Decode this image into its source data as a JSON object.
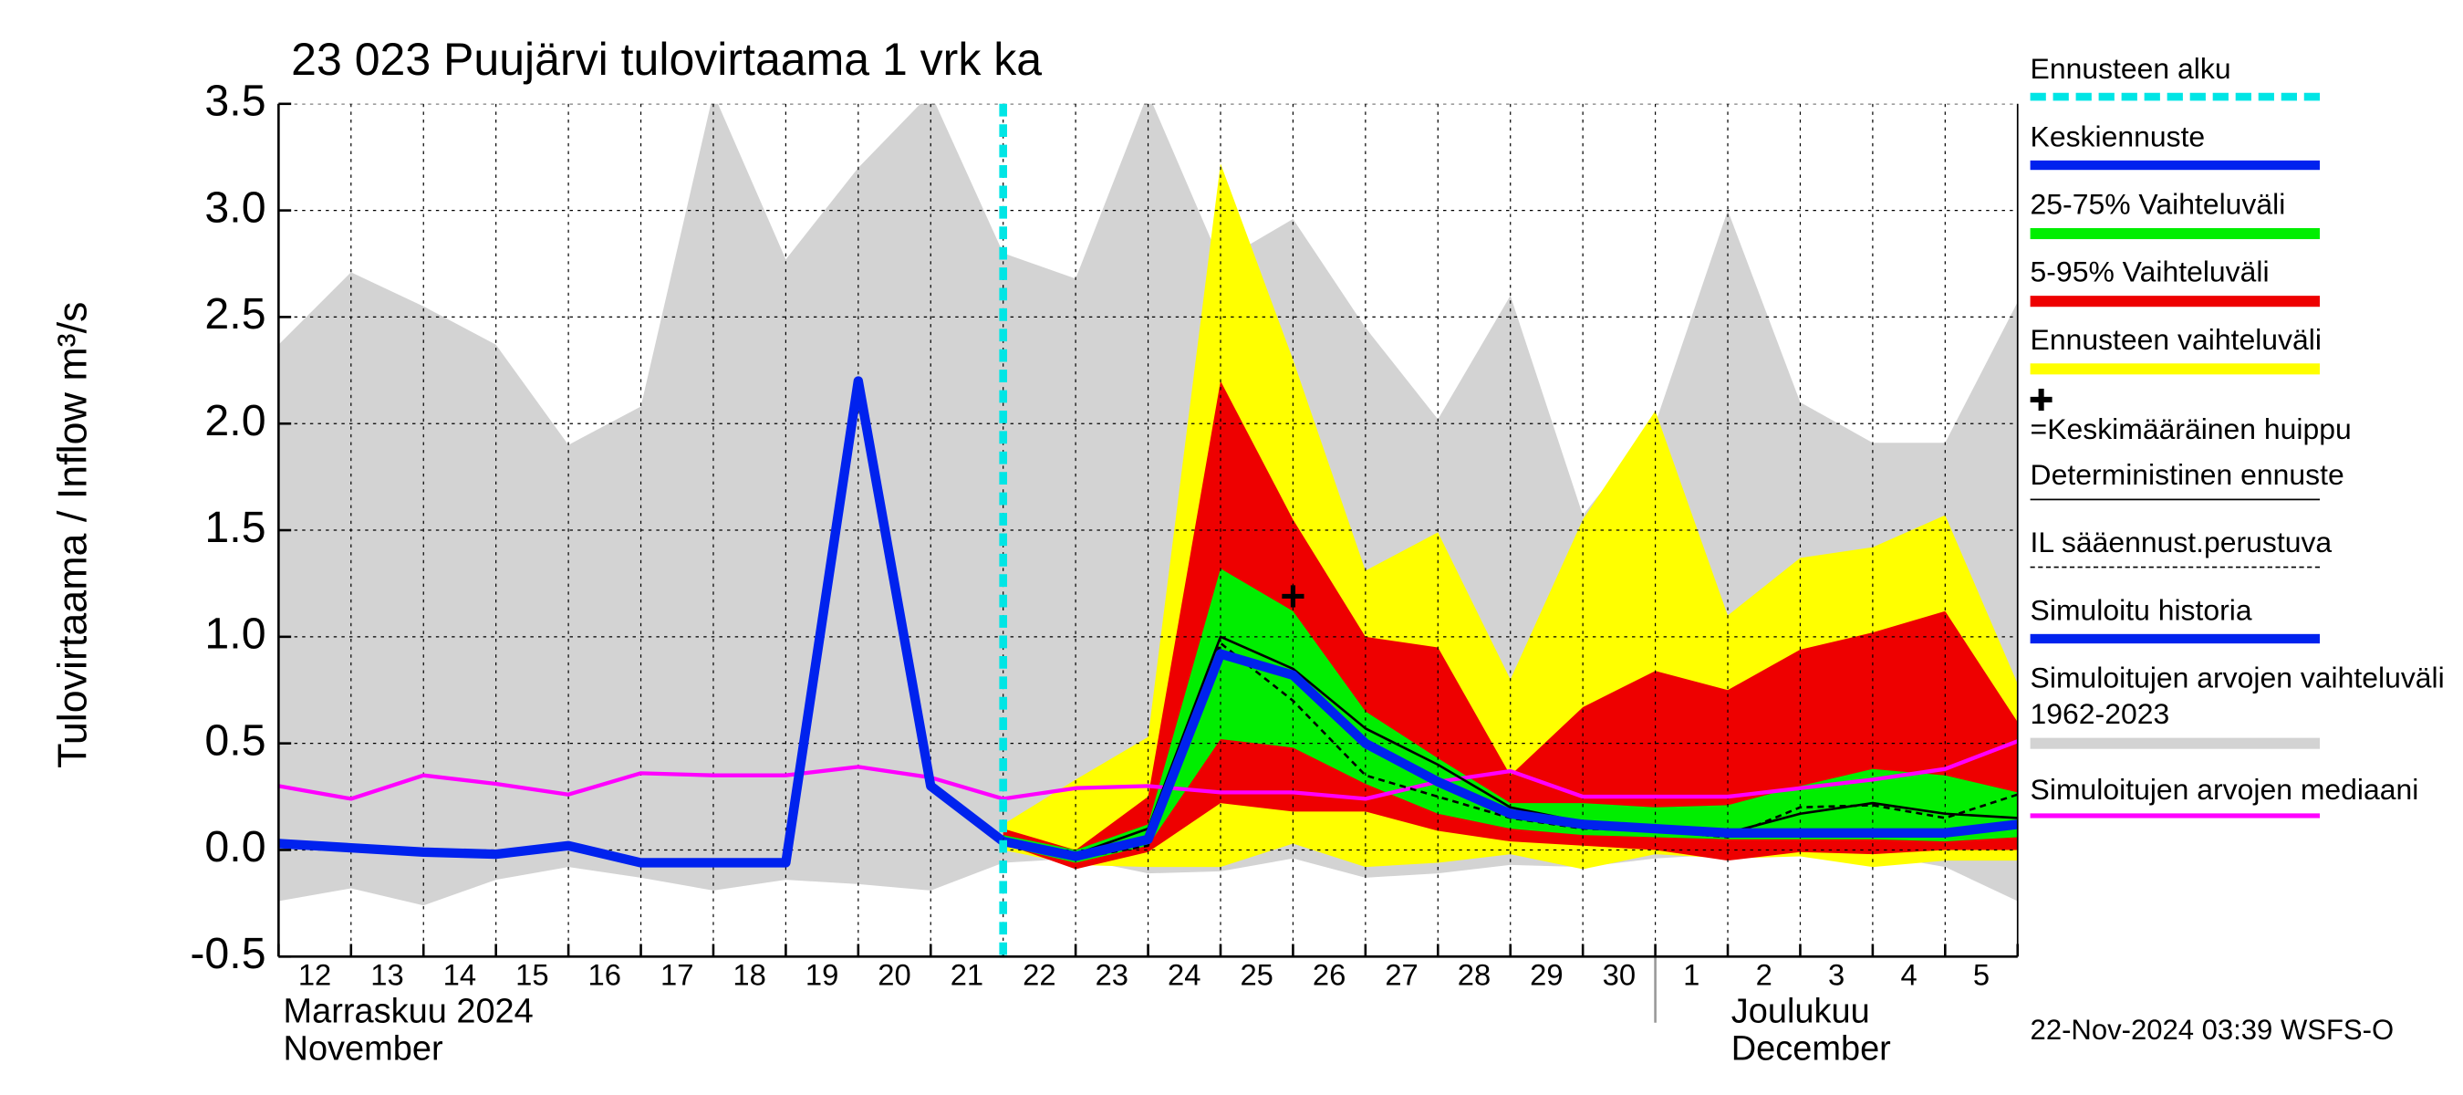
{
  "chart_data": {
    "type": "line",
    "title": "23 023 Puujärvi tulovirtaama 1 vrk ka",
    "ylabel": "Tulovirtaama / Inflow   m³/s",
    "categories": [
      "12",
      "13",
      "14",
      "15",
      "16",
      "17",
      "18",
      "19",
      "20",
      "21",
      "22",
      "23",
      "24",
      "25",
      "26",
      "27",
      "28",
      "29",
      "30",
      "1",
      "2",
      "3",
      "4",
      "5",
      null
    ],
    "month_labels": [
      "Marraskuu 2024",
      "November",
      "Joulukuu",
      "December"
    ],
    "timestamp": "22-Nov-2024 03:39 WSFS-O",
    "ylim": [
      -0.5,
      3.5
    ],
    "yticks": [
      -0.5,
      {
        "value": 0,
        "label": "0.0"
      },
      0.5,
      {
        "value": 1,
        "label": "1.0"
      },
      1.5,
      {
        "value": 2,
        "label": "2.0"
      },
      2.5,
      {
        "value": 3,
        "label": "3.0"
      },
      3.5
    ],
    "grid": true,
    "series": [
      {
        "name": "Ennusteen alku",
        "kind": "vline",
        "color": "#00e5e5",
        "x": 10
      },
      {
        "name": "Keskiennuste",
        "kind": "line",
        "style": "thick",
        "color": "#0022ee",
        "values": [
          null,
          null,
          null,
          null,
          null,
          null,
          null,
          null,
          null,
          null,
          0.04,
          -0.03,
          0.05,
          0.92,
          0.82,
          0.5,
          0.32,
          0.17,
          0.12,
          0.1,
          0.08,
          0.08,
          0.08,
          0.08,
          0.12
        ]
      },
      {
        "name": "25-75% Vaihteluväli",
        "kind": "band",
        "color": "#00ee00",
        "high": [
          null,
          null,
          null,
          null,
          null,
          null,
          null,
          null,
          null,
          null,
          0.07,
          0.0,
          0.12,
          1.32,
          1.12,
          0.65,
          0.43,
          0.22,
          0.22,
          0.2,
          0.21,
          0.3,
          0.38,
          0.35,
          0.27
        ],
        "low": [
          null,
          null,
          null,
          null,
          null,
          null,
          null,
          null,
          null,
          null,
          0.02,
          -0.06,
          0.02,
          0.52,
          0.48,
          0.31,
          0.17,
          0.1,
          0.07,
          0.06,
          0.05,
          0.05,
          0.05,
          0.04,
          0.06
        ]
      },
      {
        "name": "5-95% Vaihteluväli",
        "kind": "band",
        "color": "#ee0000",
        "high": [
          null,
          null,
          null,
          null,
          null,
          null,
          null,
          null,
          null,
          null,
          0.1,
          0.0,
          0.25,
          2.2,
          1.55,
          1.0,
          0.95,
          0.35,
          0.67,
          0.84,
          0.75,
          0.94,
          1.02,
          1.12,
          0.6
        ],
        "low": [
          null,
          null,
          null,
          null,
          null,
          null,
          null,
          null,
          null,
          null,
          0.03,
          -0.09,
          -0.01,
          0.22,
          0.18,
          0.18,
          0.09,
          0.04,
          0.02,
          0.0,
          -0.05,
          -0.01,
          -0.02,
          0.0,
          0.0
        ]
      },
      {
        "name": "Ennusteen vaihteluväli",
        "kind": "band",
        "color": "#ffff00",
        "high": [
          null,
          null,
          null,
          null,
          null,
          null,
          null,
          null,
          null,
          null,
          0.12,
          0.33,
          0.53,
          3.22,
          2.3,
          1.31,
          1.49,
          0.8,
          1.55,
          2.06,
          1.1,
          1.37,
          1.42,
          1.57,
          0.78
        ],
        "low": [
          null,
          null,
          null,
          null,
          null,
          null,
          null,
          null,
          null,
          null,
          0.0,
          -0.07,
          -0.08,
          -0.08,
          0.03,
          -0.08,
          -0.06,
          -0.02,
          -0.09,
          -0.02,
          -0.04,
          -0.03,
          -0.08,
          -0.05,
          -0.05
        ]
      },
      {
        "name": "=Keskimääräinen huippu",
        "kind": "marker",
        "color": "#000000",
        "x": 14,
        "value": 1.19
      },
      {
        "name": "Deterministinen ennuste",
        "kind": "line",
        "style": "thin",
        "color": "#000000",
        "values": [
          null,
          null,
          null,
          null,
          null,
          null,
          null,
          null,
          null,
          null,
          0.05,
          -0.02,
          0.1,
          1.0,
          0.85,
          0.57,
          0.4,
          0.2,
          0.13,
          0.11,
          0.08,
          0.17,
          0.22,
          0.17,
          0.15
        ]
      },
      {
        "name": "IL sääennust.perustuva",
        "kind": "line",
        "style": "dashed",
        "color": "#000000",
        "values": [
          null,
          null,
          null,
          null,
          null,
          null,
          null,
          null,
          null,
          null,
          0.03,
          -0.04,
          0.02,
          0.97,
          0.7,
          0.35,
          0.25,
          0.15,
          0.1,
          0.09,
          0.06,
          0.2,
          0.21,
          0.15,
          0.26
        ]
      },
      {
        "name": "Simuloitu historia",
        "kind": "line",
        "style": "thick",
        "color": "#0022ee",
        "values": [
          0.03,
          0.01,
          -0.01,
          -0.02,
          0.02,
          -0.06,
          -0.06,
          -0.06,
          2.2,
          0.3,
          0.04,
          null,
          null,
          null,
          null,
          null,
          null,
          null,
          null,
          null,
          null,
          null,
          null,
          null,
          null
        ]
      },
      {
        "name": "Simuloitujen arvojen vaihteluväli 1962-2023",
        "kind": "band",
        "color": "#d3d3d3",
        "high": [
          2.37,
          2.71,
          2.55,
          2.37,
          1.9,
          2.08,
          3.55,
          2.77,
          3.2,
          3.55,
          2.8,
          2.68,
          3.55,
          2.76,
          2.96,
          2.45,
          2.02,
          2.6,
          1.57,
          2.0,
          3.0,
          2.1,
          1.91,
          1.91,
          2.57
        ],
        "low": [
          -0.24,
          -0.18,
          -0.26,
          -0.14,
          -0.08,
          -0.13,
          -0.19,
          -0.14,
          -0.16,
          -0.19,
          -0.06,
          -0.04,
          -0.11,
          -0.1,
          -0.04,
          -0.13,
          -0.11,
          -0.07,
          -0.08,
          -0.04,
          -0.02,
          -0.02,
          -0.02,
          -0.08,
          -0.24
        ]
      },
      {
        "name": "Simuloitujen arvojen mediaani",
        "kind": "line",
        "style": "medium",
        "color": "#ff00ff",
        "values": [
          0.3,
          0.24,
          0.35,
          0.31,
          0.26,
          0.36,
          0.35,
          0.35,
          0.39,
          0.34,
          0.24,
          0.29,
          0.3,
          0.27,
          0.27,
          0.24,
          0.32,
          0.37,
          0.25,
          0.25,
          0.25,
          0.29,
          0.33,
          0.38,
          0.51
        ]
      }
    ]
  }
}
